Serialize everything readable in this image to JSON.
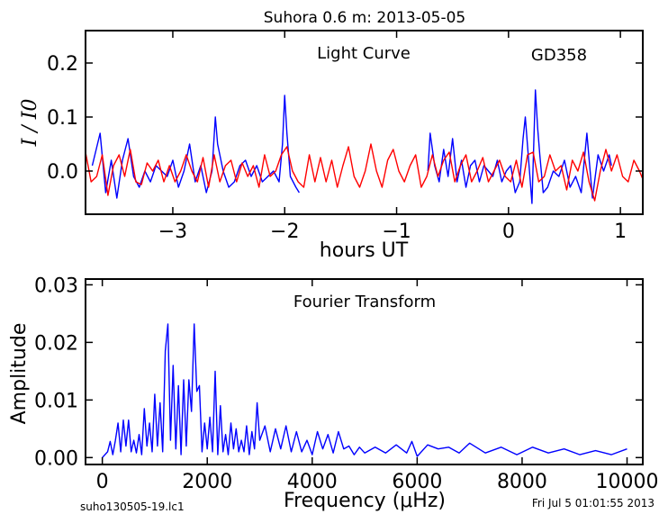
{
  "figure": {
    "title": "Suhora 0.6 m:  2013-05-05",
    "footer_left": "suho130505-19.lc1",
    "footer_right": "Fri Jul  5 01:01:55 2013"
  },
  "chart_data": [
    {
      "type": "line",
      "annotation": "Light Curve",
      "star_label": "GD358",
      "xlabel": "hours UT",
      "ylabel": "I / I0",
      "xlim": [
        -3.78,
        1.2
      ],
      "ylim": [
        -0.08,
        0.26
      ],
      "x_ticks": [
        -3,
        -2,
        -1,
        0,
        1
      ],
      "x_tick_labels": [
        "−3",
        "−2",
        "−1",
        "0",
        "1"
      ],
      "y_ticks": [
        0.0,
        0.1,
        0.2
      ],
      "y_tick_labels": [
        "0.0",
        "0.1",
        "0.2"
      ],
      "grid": false,
      "series": [
        {
          "color": "#0000ff",
          "segments": [
            {
              "x": [
                -3.72,
                -3.65,
                -3.6,
                -3.55,
                -3.5,
                -3.45,
                -3.4,
                -3.35,
                -3.3,
                -3.25,
                -3.2,
                -3.15,
                -3.1,
                -3.05,
                -3.0,
                -2.95,
                -2.9,
                -2.85,
                -2.8,
                -2.75,
                -2.7,
                -2.65,
                -2.62,
                -2.6,
                -2.55,
                -2.5,
                -2.45,
                -2.4,
                -2.35,
                -2.3,
                -2.25,
                -2.2,
                -2.15,
                -2.1,
                -2.05,
                -2.02,
                -2.0,
                -1.98,
                -1.95,
                -1.9,
                -1.87
              ],
              "y": [
                0.01,
                0.07,
                -0.04,
                0.02,
                -0.05,
                0.02,
                0.06,
                -0.01,
                -0.03,
                0.0,
                -0.02,
                0.01,
                0.0,
                -0.01,
                0.02,
                -0.03,
                0.0,
                0.05,
                -0.02,
                0.01,
                -0.04,
                0.0,
                0.1,
                0.05,
                0.0,
                -0.03,
                -0.02,
                0.01,
                0.02,
                -0.01,
                0.01,
                -0.02,
                -0.01,
                0.0,
                -0.02,
                0.05,
                0.14,
                0.07,
                -0.01,
                -0.03,
                -0.04
              ]
            },
            {
              "x": [
                -0.72,
                -0.7,
                -0.66,
                -0.62,
                -0.58,
                -0.54,
                -0.5,
                -0.46,
                -0.42,
                -0.38,
                -0.34,
                -0.3,
                -0.26,
                -0.22,
                -0.18,
                -0.14,
                -0.1,
                -0.06,
                -0.02,
                0.02,
                0.06,
                0.1,
                0.13,
                0.15,
                0.18,
                0.21,
                0.24,
                0.26,
                0.28,
                0.31,
                0.35,
                0.4,
                0.45,
                0.5,
                0.55,
                0.6,
                0.65,
                0.7,
                0.75,
                0.8,
                0.85,
                0.9,
                0.92
              ],
              "y": [
                0.0,
                0.07,
                0.01,
                -0.02,
                0.04,
                -0.01,
                0.06,
                -0.02,
                0.02,
                -0.03,
                0.01,
                0.02,
                -0.02,
                0.01,
                0.0,
                -0.01,
                0.02,
                -0.02,
                0.0,
                0.01,
                -0.04,
                -0.02,
                0.06,
                0.1,
                0.02,
                -0.06,
                0.15,
                0.08,
                0.03,
                -0.04,
                -0.03,
                0.0,
                -0.01,
                0.02,
                -0.03,
                -0.01,
                -0.04,
                0.07,
                -0.05,
                0.03,
                0.0,
                0.03,
                0.01
              ]
            }
          ]
        },
        {
          "color": "#ff0000",
          "segments": [
            {
              "x": [
                -3.78,
                -3.73,
                -3.68,
                -3.63,
                -3.58,
                -3.53,
                -3.48,
                -3.43,
                -3.38,
                -3.33,
                -3.28,
                -3.23,
                -3.18,
                -3.13,
                -3.08,
                -3.03,
                -2.98,
                -2.93,
                -2.88,
                -2.83,
                -2.78,
                -2.73,
                -2.68,
                -2.63,
                -2.58,
                -2.53,
                -2.48,
                -2.43,
                -2.38,
                -2.33,
                -2.28,
                -2.23,
                -2.18,
                -2.13,
                -2.08,
                -2.03,
                -1.98,
                -1.93,
                -1.88,
                -1.83,
                -1.78,
                -1.73,
                -1.68,
                -1.63,
                -1.58,
                -1.53,
                -1.48,
                -1.43,
                -1.38,
                -1.33,
                -1.28,
                -1.23,
                -1.18,
                -1.13,
                -1.08,
                -1.03,
                -0.98,
                -0.93,
                -0.88,
                -0.83,
                -0.78,
                -0.73,
                -0.68,
                -0.63,
                -0.58,
                -0.53,
                -0.48,
                -0.43,
                -0.38,
                -0.33,
                -0.28,
                -0.23,
                -0.18,
                -0.13,
                -0.08,
                -0.03,
                0.02,
                0.07,
                0.12,
                0.17,
                0.22,
                0.27,
                0.32,
                0.37,
                0.42,
                0.47,
                0.52,
                0.57,
                0.62,
                0.67,
                0.72,
                0.77,
                0.82,
                0.87,
                0.92,
                0.97,
                1.02,
                1.07,
                1.12,
                1.17,
                1.2
              ],
              "y": [
                0.035,
                -0.02,
                -0.01,
                0.03,
                -0.045,
                0.01,
                0.03,
                -0.01,
                0.04,
                -0.02,
                -0.025,
                0.015,
                0.0,
                0.02,
                -0.02,
                0.01,
                -0.02,
                0.0,
                0.03,
                0.0,
                -0.02,
                0.025,
                -0.03,
                0.03,
                -0.02,
                0.01,
                0.02,
                -0.02,
                0.015,
                -0.01,
                0.01,
                -0.03,
                0.03,
                -0.01,
                0.0,
                0.03,
                0.045,
                0.0,
                -0.02,
                -0.03,
                0.03,
                -0.02,
                0.025,
                -0.02,
                0.02,
                -0.03,
                0.01,
                0.045,
                -0.01,
                -0.03,
                0.0,
                0.05,
                0.0,
                -0.03,
                0.02,
                0.04,
                0.0,
                -0.02,
                0.01,
                0.03,
                -0.03,
                -0.01,
                0.03,
                -0.01,
                0.02,
                0.035,
                -0.02,
                0.01,
                0.03,
                -0.02,
                0.0,
                0.025,
                -0.02,
                0.0,
                0.02,
                -0.01,
                -0.02,
                0.02,
                -0.03,
                0.03,
                0.035,
                -0.02,
                -0.01,
                0.03,
                0.0,
                0.01,
                -0.035,
                0.02,
                0.0,
                0.035,
                -0.02,
                -0.055,
                0.0,
                0.04,
                0.0,
                0.03,
                -0.01,
                -0.02,
                0.02,
                0.0,
                -0.015
              ]
            }
          ]
        }
      ]
    },
    {
      "type": "line",
      "annotation": "Fourier Transform",
      "xlabel": "Frequency (μHz)",
      "ylabel": "Amplitude",
      "xlim": [
        -320,
        10300
      ],
      "ylim": [
        -0.0012,
        0.031
      ],
      "x_ticks": [
        0,
        2000,
        4000,
        6000,
        8000,
        10000
      ],
      "x_tick_labels": [
        "0",
        "2000",
        "4000",
        "6000",
        "8000",
        "10000"
      ],
      "y_ticks": [
        0.0,
        0.01,
        0.02,
        0.03
      ],
      "y_tick_labels": [
        "0.00",
        "0.01",
        "0.02",
        "0.03"
      ],
      "grid": false,
      "series": [
        {
          "color": "#0000ff",
          "segments": [
            {
              "x": [
                0,
                100,
                150,
                200,
                250,
                300,
                350,
                400,
                450,
                500,
                550,
                600,
                650,
                700,
                750,
                800,
                850,
                900,
                950,
                1000,
                1050,
                1100,
                1150,
                1200,
                1250,
                1300,
                1350,
                1400,
                1450,
                1500,
                1550,
                1600,
                1650,
                1700,
                1750,
                1800,
                1850,
                1900,
                1950,
                2000,
                2050,
                2100,
                2150,
                2200,
                2250,
                2300,
                2350,
                2400,
                2450,
                2500,
                2550,
                2600,
                2650,
                2700,
                2750,
                2800,
                2850,
                2900,
                2950,
                3000,
                3100,
                3200,
                3300,
                3400,
                3500,
                3600,
                3700,
                3800,
                3900,
                4000,
                4100,
                4200,
                4300,
                4400,
                4500,
                4600,
                4700,
                4800,
                4900,
                5000,
                5200,
                5400,
                5600,
                5800,
                5900,
                6000,
                6200,
                6400,
                6600,
                6800,
                7000,
                7300,
                7600,
                7900,
                8200,
                8500,
                8800,
                9100,
                9400,
                9700,
                10000
              ],
              "y": [
                0.0,
                0.001,
                0.0028,
                0.0005,
                0.003,
                0.006,
                0.001,
                0.0065,
                0.002,
                0.0065,
                0.001,
                0.003,
                0.0008,
                0.004,
                0.0005,
                0.0085,
                0.002,
                0.006,
                0.001,
                0.011,
                0.002,
                0.0095,
                0.001,
                0.0185,
                0.0232,
                0.003,
                0.016,
                0.0015,
                0.0125,
                0.0005,
                0.0135,
                0.002,
                0.0135,
                0.008,
                0.0232,
                0.0115,
                0.0125,
                0.001,
                0.006,
                0.0015,
                0.007,
                0.001,
                0.015,
                0.0005,
                0.009,
                0.001,
                0.004,
                0.0005,
                0.006,
                0.0015,
                0.005,
                0.001,
                0.003,
                0.001,
                0.0055,
                0.0005,
                0.0045,
                0.0015,
                0.0095,
                0.003,
                0.0055,
                0.001,
                0.005,
                0.0015,
                0.0055,
                0.001,
                0.0045,
                0.001,
                0.003,
                0.0005,
                0.0045,
                0.0015,
                0.004,
                0.0008,
                0.0045,
                0.0015,
                0.002,
                0.0005,
                0.0018,
                0.0008,
                0.0018,
                0.0008,
                0.0022,
                0.0008,
                0.0028,
                0.0002,
                0.0022,
                0.0015,
                0.0018,
                0.0008,
                0.0025,
                0.0008,
                0.0018,
                0.0005,
                0.0018,
                0.0008,
                0.0015,
                0.0005,
                0.0012,
                0.0005,
                0.0015
              ]
            }
          ]
        }
      ]
    }
  ]
}
